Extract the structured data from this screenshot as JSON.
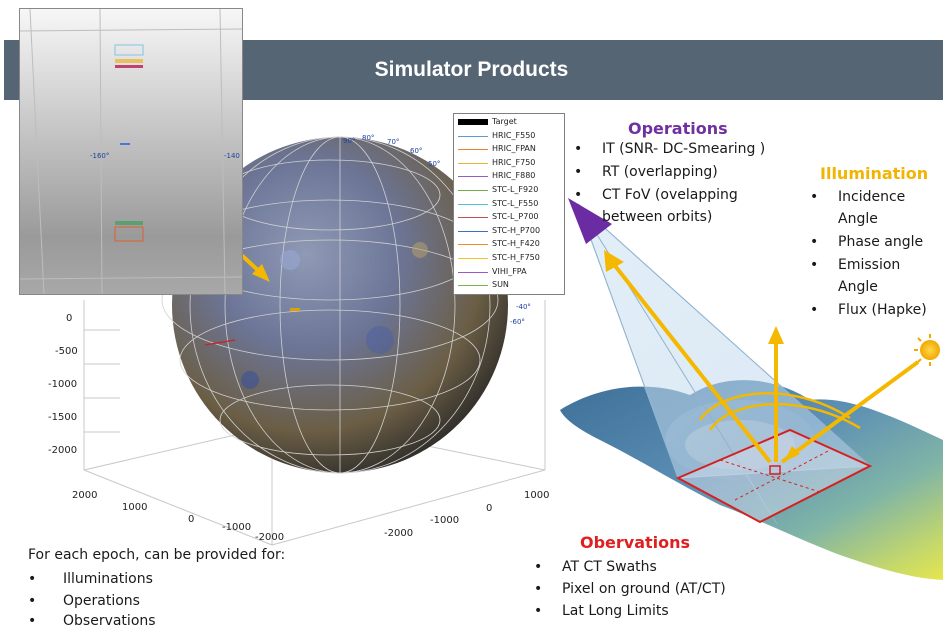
{
  "slide": {
    "title": "Simulator Products",
    "operations": {
      "heading": "Operations",
      "items": [
        "IT (SNR- DC-Smearing )",
        "RT (overlapping)",
        "CT FoV (ovelapping",
        "between orbits)"
      ]
    },
    "illumination": {
      "heading": "Illumination",
      "items": [
        "Incidence",
        "Angle",
        "Phase angle",
        "Emission",
        "Angle",
        "Flux (Hapke)"
      ]
    },
    "observations": {
      "heading": "Obervations",
      "items": [
        "AT CT Swaths",
        "Pixel on ground (AT/CT)",
        "Lat Long Limits"
      ]
    },
    "epoch": {
      "intro": "For each epoch, can be provided for:",
      "items": [
        "Illuminations",
        "Operations",
        "Observations"
      ]
    },
    "legend": [
      {
        "label": "Target",
        "color": "#000000"
      },
      {
        "label": "HRIC_F550",
        "color": "#5b9bd5"
      },
      {
        "label": "HRIC_FPAN",
        "color": "#ed7d31"
      },
      {
        "label": "HRIC_F750",
        "color": "#e8b730"
      },
      {
        "label": "HRIC_F880",
        "color": "#8e5fbf"
      },
      {
        "label": "STC-L_F920",
        "color": "#70ad47"
      },
      {
        "label": "STC-L_F550",
        "color": "#4fc3e0"
      },
      {
        "label": "STC-L_P700",
        "color": "#c0504d"
      },
      {
        "label": "STC-H_P700",
        "color": "#3a6fc4"
      },
      {
        "label": "STC-H_F420",
        "color": "#f28c28"
      },
      {
        "label": "STC-H_F750",
        "color": "#f2c230"
      },
      {
        "label": "VIHI_FPA",
        "color": "#9e57c8"
      },
      {
        "label": "SUN",
        "color": "#7fb04f"
      }
    ],
    "axes": {
      "z_ticks": [
        "0",
        "-500",
        "-1000",
        "-1500",
        "-2000"
      ],
      "x_ticks": [
        "2000",
        "1000",
        "0",
        "-1000",
        "-2000"
      ],
      "y_ticks": [
        "1000",
        "0",
        "-1000",
        "-2000"
      ],
      "globe_labels": [
        "90°",
        "80°",
        "70°",
        "60°",
        "50°",
        "-40°",
        "-60°",
        "-160°",
        "-140"
      ]
    },
    "colors": {
      "banner": "#556574",
      "operations_heading": "#7030a0",
      "illumination_heading": "#f2b400",
      "observations_heading": "#e02020",
      "arrow": "#f5b800",
      "footprint": "#d62020"
    }
  }
}
